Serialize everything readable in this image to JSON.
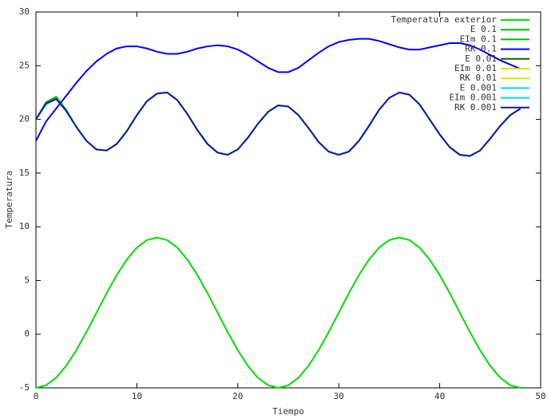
{
  "chart_data": {
    "type": "line",
    "xlabel": "Tiempo",
    "ylabel": "Temperatura",
    "xlim": [
      0,
      50
    ],
    "ylim": [
      -5,
      30
    ],
    "xticks": [
      0,
      10,
      20,
      30,
      40,
      50
    ],
    "yticks": [
      -5,
      0,
      5,
      10,
      15,
      20,
      25,
      30
    ],
    "grid": false,
    "legend": "top-right",
    "x": [
      0,
      1,
      2,
      3,
      4,
      5,
      6,
      7,
      8,
      9,
      10,
      11,
      12,
      13,
      14,
      15,
      16,
      17,
      18,
      19,
      20,
      21,
      22,
      23,
      24,
      25,
      26,
      27,
      28,
      29,
      30,
      31,
      32,
      33,
      34,
      35,
      36,
      37,
      38,
      39,
      40,
      41,
      42,
      43,
      44,
      45,
      46,
      47,
      48
    ],
    "series": [
      {
        "name": "Temperatura exterior",
        "color": "#00dd00",
        "values": [
          -5,
          -4.76,
          -4.06,
          -2.95,
          -1.5,
          0.19,
          2,
          3.81,
          5.5,
          6.95,
          8.06,
          8.76,
          9,
          8.76,
          8.06,
          6.95,
          5.5,
          3.81,
          2,
          0.19,
          -1.5,
          -2.95,
          -4.06,
          -4.76,
          -5,
          -4.76,
          -4.06,
          -2.95,
          -1.5,
          0.19,
          2,
          3.81,
          5.5,
          6.95,
          8.06,
          8.76,
          9,
          8.76,
          8.06,
          6.95,
          5.5,
          3.81,
          2,
          0.19,
          -1.5,
          -2.95,
          -4.06,
          -4.76,
          -5
        ]
      },
      {
        "name": "E 0.1",
        "color": "#00c000",
        "values": [
          20,
          21.6,
          22.1,
          20.9,
          19.3,
          18,
          17.2,
          17.1,
          17.7,
          18.9,
          20.4,
          21.7,
          22.4,
          22.5,
          21.8,
          20.5,
          19,
          17.7,
          16.9,
          16.7,
          17.2,
          18.3,
          19.6,
          20.7,
          21.3,
          21.2,
          20.4,
          19.2,
          17.9,
          17,
          16.7,
          17,
          18,
          19.4,
          20.9,
          22,
          22.5,
          22.3,
          21.4,
          20,
          18.6,
          17.4,
          16.7,
          16.6,
          17.1,
          18.2,
          19.4,
          20.4,
          21
        ]
      },
      {
        "name": "EIm 0.1",
        "color": "#00c000",
        "values": [
          20,
          21.4,
          21.9,
          20.8,
          19.3,
          18,
          17.2,
          17.1,
          17.7,
          18.9,
          20.4,
          21.7,
          22.4,
          22.5,
          21.8,
          20.5,
          19,
          17.7,
          16.9,
          16.7,
          17.2,
          18.3,
          19.6,
          20.7,
          21.3,
          21.2,
          20.4,
          19.2,
          17.9,
          17,
          16.7,
          17,
          18,
          19.4,
          20.9,
          22,
          22.5,
          22.3,
          21.4,
          20,
          18.6,
          17.4,
          16.7,
          16.6,
          17.1,
          18.2,
          19.4,
          20.4,
          21
        ]
      },
      {
        "name": "RK 0.1",
        "color": "#0000ff",
        "values": [
          18,
          19.8,
          21,
          22.2,
          23.4,
          24.5,
          25.4,
          26.1,
          26.6,
          26.8,
          26.8,
          26.6,
          26.3,
          26.1,
          26.1,
          26.3,
          26.6,
          26.8,
          26.9,
          26.8,
          26.5,
          26,
          25.4,
          24.8,
          24.4,
          24.4,
          24.8,
          25.5,
          26.2,
          26.8,
          27.2,
          27.4,
          27.5,
          27.5,
          27.3,
          27,
          26.7,
          26.5,
          26.5,
          26.7,
          26.9,
          27.1,
          27.1,
          26.9,
          26.5,
          26,
          25.5,
          25.1,
          24.7
        ]
      },
      {
        "name": "E 0.01",
        "color": "#006400",
        "values": [
          20,
          21.5,
          21.9,
          20.8,
          19.3,
          18,
          17.2,
          17.1,
          17.7,
          18.9,
          20.4,
          21.7,
          22.4,
          22.5,
          21.8,
          20.5,
          19,
          17.7,
          16.9,
          16.7,
          17.2,
          18.3,
          19.6,
          20.7,
          21.3,
          21.2,
          20.4,
          19.2,
          17.9,
          17,
          16.7,
          17,
          18,
          19.4,
          20.9,
          22,
          22.5,
          22.3,
          21.4,
          20,
          18.6,
          17.4,
          16.7,
          16.6,
          17.1,
          18.2,
          19.4,
          20.4,
          21
        ]
      },
      {
        "name": "EIm 0.01",
        "color": "#e0e000",
        "values": [
          20,
          21.5,
          21.9,
          20.8,
          19.3,
          18,
          17.2,
          17.1,
          17.7,
          18.9,
          20.4,
          21.7,
          22.4,
          22.5,
          21.8,
          20.5,
          19,
          17.7,
          16.9,
          16.7,
          17.2,
          18.3,
          19.6,
          20.7,
          21.3,
          21.2,
          20.4,
          19.2,
          17.9,
          17,
          16.7,
          17,
          18,
          19.4,
          20.9,
          22,
          22.5,
          22.3,
          21.4,
          20,
          18.6,
          17.4,
          16.7,
          16.6,
          17.1,
          18.2,
          19.4,
          20.4,
          21
        ]
      },
      {
        "name": "RK 0.01",
        "color": "#e0e000",
        "values": [
          20,
          21.5,
          21.9,
          20.8,
          19.3,
          18,
          17.2,
          17.1,
          17.7,
          18.9,
          20.4,
          21.7,
          22.4,
          22.5,
          21.8,
          20.5,
          19,
          17.7,
          16.9,
          16.7,
          17.2,
          18.3,
          19.6,
          20.7,
          21.3,
          21.2,
          20.4,
          19.2,
          17.9,
          17,
          16.7,
          17,
          18,
          19.4,
          20.9,
          22,
          22.5,
          22.3,
          21.4,
          20,
          18.6,
          17.4,
          16.7,
          16.6,
          17.1,
          18.2,
          19.4,
          20.4,
          21
        ]
      },
      {
        "name": "E 0.001",
        "color": "#00e0e0",
        "values": [
          20,
          21.5,
          21.9,
          20.8,
          19.3,
          18,
          17.2,
          17.1,
          17.7,
          18.9,
          20.4,
          21.7,
          22.4,
          22.5,
          21.8,
          20.5,
          19,
          17.7,
          16.9,
          16.7,
          17.2,
          18.3,
          19.6,
          20.7,
          21.3,
          21.2,
          20.4,
          19.2,
          17.9,
          17,
          16.7,
          17,
          18,
          19.4,
          20.9,
          22,
          22.5,
          22.3,
          21.4,
          20,
          18.6,
          17.4,
          16.7,
          16.6,
          17.1,
          18.2,
          19.4,
          20.4,
          21
        ]
      },
      {
        "name": "EIm 0.001",
        "color": "#00e0e0",
        "values": [
          20,
          21.5,
          21.9,
          20.8,
          19.3,
          18,
          17.2,
          17.1,
          17.7,
          18.9,
          20.4,
          21.7,
          22.4,
          22.5,
          21.8,
          20.5,
          19,
          17.7,
          16.9,
          16.7,
          17.2,
          18.3,
          19.6,
          20.7,
          21.3,
          21.2,
          20.4,
          19.2,
          17.9,
          17,
          16.7,
          17,
          18,
          19.4,
          20.9,
          22,
          22.5,
          22.3,
          21.4,
          20,
          18.6,
          17.4,
          16.7,
          16.6,
          17.1,
          18.2,
          19.4,
          20.4,
          21
        ]
      },
      {
        "name": "RK 0.001",
        "color": "#1a1a9a",
        "values": [
          20,
          21.5,
          21.9,
          20.8,
          19.3,
          18,
          17.2,
          17.1,
          17.7,
          18.9,
          20.4,
          21.7,
          22.4,
          22.5,
          21.8,
          20.5,
          19,
          17.7,
          16.9,
          16.7,
          17.2,
          18.3,
          19.6,
          20.7,
          21.3,
          21.2,
          20.4,
          19.2,
          17.9,
          17,
          16.7,
          17,
          18,
          19.4,
          20.9,
          22,
          22.5,
          22.3,
          21.4,
          20,
          18.6,
          17.4,
          16.7,
          16.6,
          17.1,
          18.2,
          19.4,
          20.4,
          21
        ]
      }
    ]
  }
}
